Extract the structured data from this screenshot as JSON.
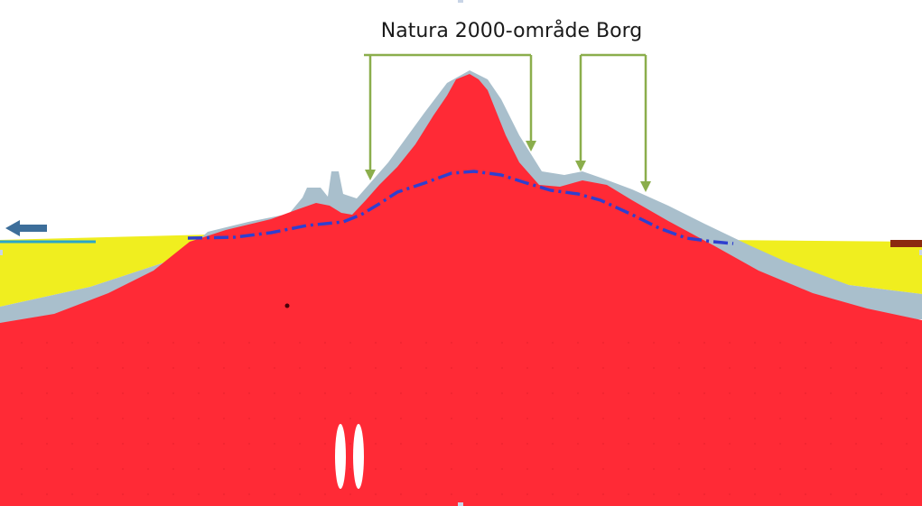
{
  "diagram": {
    "title": "Natura 2000-område Borg",
    "colors": {
      "background": "#ffffff",
      "bedrock": "#ff2a36",
      "soil_cover": "#a9bfcc",
      "sand": "#f0ee1f",
      "water_table": "#2f3fcf",
      "annotation_arrows": "#8bae4c",
      "flow_arrow": "#3d6e9a",
      "left_surface_line": "#2aa6c9",
      "right_marker": "#8b2a10",
      "wells": "#ffffff"
    },
    "elements": {
      "annotation_bracket_1": "down-arrow-bracket",
      "annotation_bracket_2": "down-arrow-bracket",
      "flow_direction": "left-arrow-icon",
      "water_table": "dashed-line",
      "wells": "two-vertical-ellipses"
    }
  }
}
